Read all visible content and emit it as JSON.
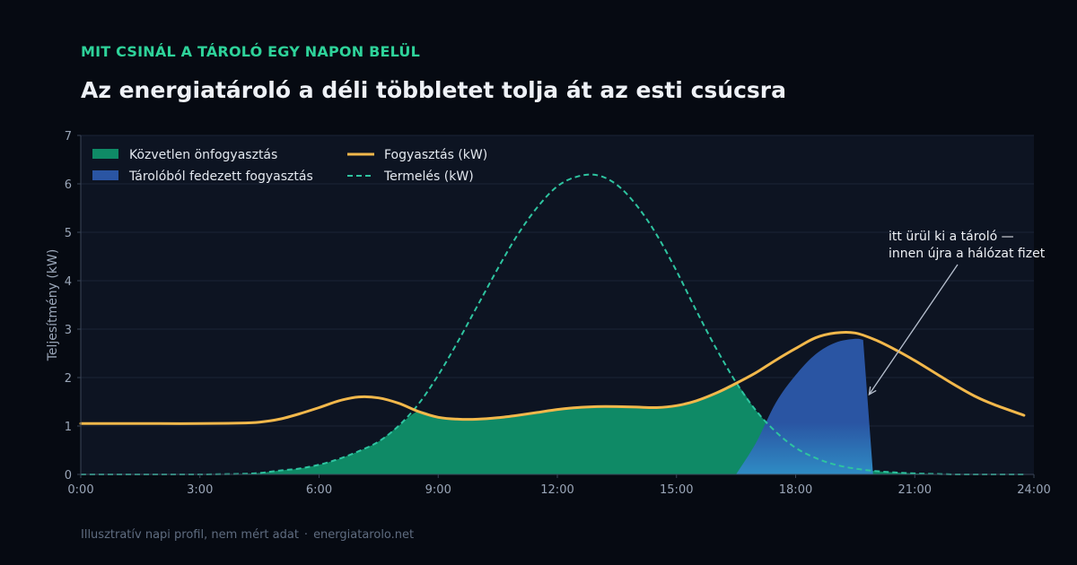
{
  "header": {
    "kicker": "MIT CSINÁL A TÁROLÓ EGY NAPON BELÜL",
    "title": "Az energiatároló a déli többletet tolja át az esti csúcsra"
  },
  "footer": {
    "note": "Illusztratív napi profil, nem mért adat",
    "separator": "·",
    "site": "energiatarolo.net"
  },
  "colors": {
    "background": "#060a12",
    "plot_bg": "#0d1422",
    "direct": "#0f8a66",
    "battery": "#2a55a3",
    "battery_light": "#2f8cc4",
    "consumption": "#f2b84b",
    "production": "#2ec4a0",
    "kicker": "#2ed39a"
  },
  "chart_data": {
    "type": "area",
    "xlabel": "",
    "ylabel": "Teljesítmény (kW)",
    "xlim": [
      0,
      24
    ],
    "ylim": [
      0,
      7
    ],
    "xticks": [
      0,
      3,
      6,
      9,
      12,
      15,
      18,
      21,
      24
    ],
    "xtick_labels": [
      "0:00",
      "3:00",
      "6:00",
      "9:00",
      "12:00",
      "15:00",
      "18:00",
      "21:00",
      "24:00"
    ],
    "yticks": [
      0,
      1,
      2,
      3,
      4,
      5,
      6,
      7
    ],
    "grid": true,
    "legend_position": "top-left",
    "x": [
      0,
      1,
      2,
      3,
      4,
      4.5,
      5,
      5.5,
      6,
      6.5,
      7,
      7.5,
      8,
      8.5,
      9,
      9.5,
      10,
      10.5,
      11,
      11.5,
      12,
      12.5,
      13,
      13.5,
      14,
      14.5,
      15,
      15.5,
      16,
      16.5,
      17,
      17.5,
      18,
      18.5,
      19,
      19.5,
      20,
      20.5,
      21,
      21.5,
      22,
      22.5,
      23,
      23.75
    ],
    "series": [
      {
        "name": "Fogyasztás (kW)",
        "style": "solid-line",
        "values": [
          1.05,
          1.05,
          1.05,
          1.05,
          1.06,
          1.08,
          1.14,
          1.25,
          1.38,
          1.52,
          1.6,
          1.58,
          1.47,
          1.3,
          1.18,
          1.14,
          1.14,
          1.17,
          1.22,
          1.28,
          1.34,
          1.38,
          1.4,
          1.4,
          1.39,
          1.38,
          1.42,
          1.52,
          1.68,
          1.88,
          2.1,
          2.36,
          2.6,
          2.82,
          2.92,
          2.92,
          2.78,
          2.58,
          2.35,
          2.1,
          1.85,
          1.62,
          1.44,
          1.22
        ]
      },
      {
        "name": "Termelés (kW)",
        "style": "dashed-line",
        "values": [
          0,
          0,
          0,
          0,
          0.01,
          0.03,
          0.08,
          0.12,
          0.2,
          0.32,
          0.48,
          0.68,
          1.0,
          1.45,
          2.05,
          2.75,
          3.5,
          4.25,
          4.95,
          5.52,
          5.95,
          6.15,
          6.18,
          5.98,
          5.55,
          4.95,
          4.2,
          3.38,
          2.6,
          1.9,
          1.32,
          0.88,
          0.55,
          0.34,
          0.2,
          0.12,
          0.07,
          0.04,
          0.02,
          0.01,
          0,
          0,
          0,
          0
        ]
      },
      {
        "name": "Közvetlen önfogyasztás",
        "style": "area",
        "values": [
          0,
          0,
          0,
          0,
          0.01,
          0.03,
          0.08,
          0.12,
          0.2,
          0.32,
          0.48,
          0.68,
          1.0,
          1.3,
          1.18,
          1.14,
          1.14,
          1.17,
          1.22,
          1.28,
          1.34,
          1.38,
          1.4,
          1.4,
          1.39,
          1.38,
          1.42,
          1.52,
          1.68,
          1.85,
          1.32,
          0.88,
          0.55,
          0.34,
          0.2,
          0.12,
          0.07,
          0.04,
          0.02,
          0.01,
          0,
          0,
          0,
          0
        ]
      },
      {
        "name": "Tárolóból fedezett fogyasztás",
        "style": "area",
        "values": [
          0,
          0,
          0,
          0,
          0,
          0,
          0,
          0,
          0,
          0,
          0,
          0,
          0,
          0,
          0,
          0,
          0,
          0,
          0,
          0,
          0,
          0,
          0,
          0,
          0,
          0,
          0,
          0,
          0,
          0,
          0.65,
          1.48,
          2.05,
          2.48,
          2.72,
          2.8,
          0,
          0,
          0,
          0,
          0,
          0,
          0,
          0
        ]
      }
    ],
    "battery_end_x": 19.8,
    "battery_end_value": 2.78,
    "annotation": {
      "text_lines": [
        "itt ürül ki a tároló —",
        "innen újra a hálózat fizet"
      ],
      "x": 19.85,
      "y": 1.65
    }
  }
}
